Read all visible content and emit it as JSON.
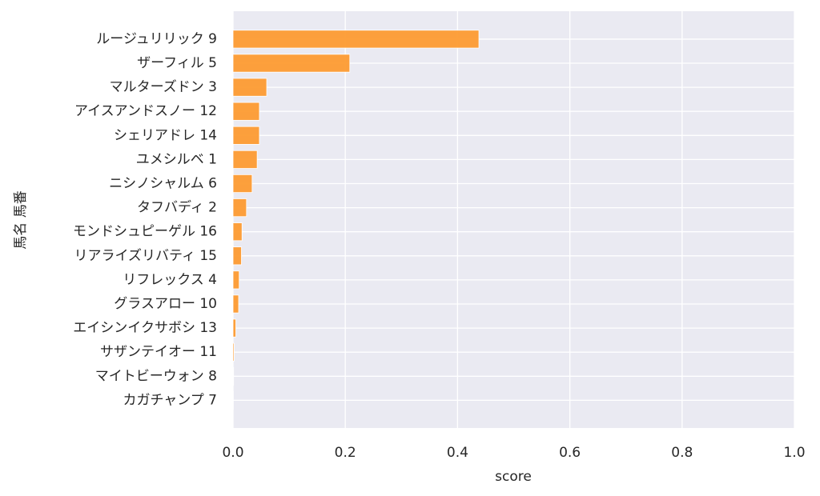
{
  "chart_data": {
    "type": "barh",
    "xlabel": "score",
    "ylabel": "馬名 馬番",
    "categories": [
      "ルージュリリック 9",
      "ザーフィル 5",
      "マルターズドン 3",
      "アイスアンドスノー 12",
      "シェリアドレ 14",
      "ユメシルベ 1",
      "ニシノシャルム 6",
      "タフバディ 2",
      "モンドシュピーゲル 16",
      "リアライズリバティ 15",
      "リフレックス 4",
      "グラスアロー 10",
      "エイシンイクサボシ 13",
      "サザンテイオー 11",
      "マイトビーウォン 8",
      "カガチャンプ 7"
    ],
    "values": [
      0.438,
      0.208,
      0.06,
      0.047,
      0.047,
      0.043,
      0.034,
      0.024,
      0.016,
      0.015,
      0.011,
      0.01,
      0.005,
      0.002,
      0.001,
      0.0005
    ],
    "color": "#fd9b32",
    "xlim": [
      0,
      1
    ],
    "xticks": [
      {
        "value": 0,
        "label": "0.0"
      },
      0.2,
      0.4,
      0.6,
      0.8,
      {
        "value": 1,
        "label": "1.0"
      }
    ],
    "grid": true
  }
}
